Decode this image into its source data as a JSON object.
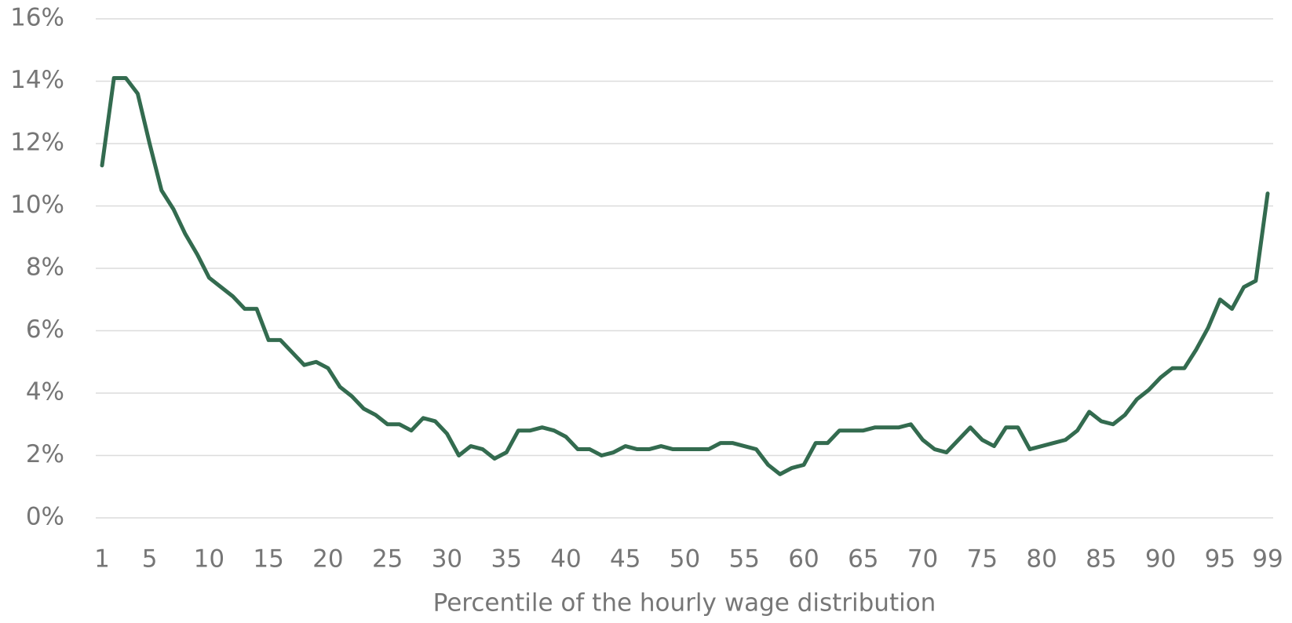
{
  "chart_data": {
    "type": "line",
    "x_label": "Percentile of the hourly wage distribution",
    "x": [
      1,
      2,
      3,
      4,
      5,
      6,
      7,
      8,
      9,
      10,
      11,
      12,
      13,
      14,
      15,
      16,
      17,
      18,
      19,
      20,
      21,
      22,
      23,
      24,
      25,
      26,
      27,
      28,
      29,
      30,
      31,
      32,
      33,
      34,
      35,
      36,
      37,
      38,
      39,
      40,
      41,
      42,
      43,
      44,
      45,
      46,
      47,
      48,
      49,
      50,
      51,
      52,
      53,
      54,
      55,
      56,
      57,
      58,
      59,
      60,
      61,
      62,
      63,
      64,
      65,
      66,
      67,
      68,
      69,
      70,
      71,
      72,
      73,
      74,
      75,
      76,
      77,
      78,
      79,
      80,
      81,
      82,
      83,
      84,
      85,
      86,
      87,
      88,
      89,
      90,
      91,
      92,
      93,
      94,
      95,
      96,
      97,
      98,
      99
    ],
    "series": [
      {
        "color": "#336b4f",
        "values": [
          11.3,
          14.1,
          14.1,
          13.6,
          12.0,
          10.5,
          9.9,
          9.1,
          8.45,
          7.7,
          7.4,
          7.1,
          6.7,
          6.7,
          5.7,
          5.7,
          5.3,
          4.9,
          5.0,
          4.8,
          4.2,
          3.9,
          3.5,
          3.3,
          3.0,
          3.0,
          2.8,
          3.2,
          3.1,
          2.7,
          2.0,
          2.3,
          2.2,
          1.9,
          2.1,
          2.8,
          2.8,
          2.9,
          2.8,
          2.6,
          2.2,
          2.2,
          2.0,
          2.1,
          2.3,
          2.2,
          2.2,
          2.3,
          2.2,
          2.2,
          2.2,
          2.2,
          2.4,
          2.4,
          2.3,
          2.2,
          1.7,
          1.4,
          1.6,
          1.7,
          2.4,
          2.4,
          2.8,
          2.8,
          2.8,
          2.9,
          2.9,
          2.9,
          3.0,
          2.5,
          2.2,
          2.1,
          2.5,
          2.9,
          2.5,
          2.3,
          2.9,
          2.9,
          2.2,
          2.3,
          2.4,
          2.5,
          2.8,
          3.4,
          3.1,
          3.0,
          3.3,
          3.8,
          4.1,
          4.5,
          4.8,
          4.8,
          5.4,
          6.1,
          7.0,
          6.7,
          7.4,
          7.6,
          10.4
        ]
      }
    ],
    "xlim": [
      1,
      99
    ],
    "xticks": [
      1,
      5,
      10,
      15,
      20,
      25,
      30,
      35,
      40,
      45,
      50,
      55,
      60,
      65,
      70,
      75,
      80,
      85,
      90,
      95,
      99
    ],
    "ylim": [
      0,
      16
    ],
    "yticks": [
      {
        "value": 0,
        "label": "0%"
      },
      {
        "value": 2,
        "label": "2%"
      },
      {
        "value": 4,
        "label": "4%"
      },
      {
        "value": 6,
        "label": "6%"
      },
      {
        "value": 8,
        "label": "8%"
      },
      {
        "value": 10,
        "label": "10%"
      },
      {
        "value": 12,
        "label": "12%"
      },
      {
        "value": 14,
        "label": "14%"
      },
      {
        "value": 16,
        "label": "16%"
      }
    ],
    "grid": true
  }
}
